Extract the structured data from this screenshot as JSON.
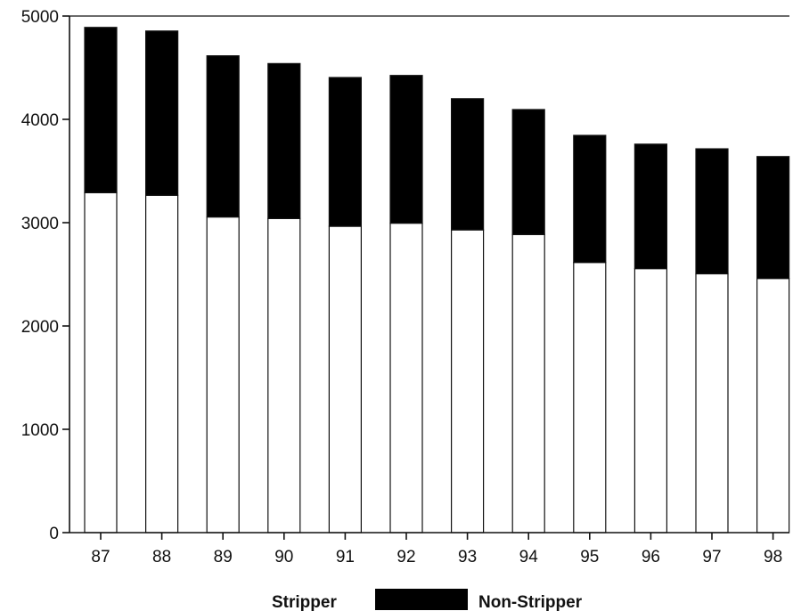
{
  "chart_data": {
    "type": "bar",
    "stacked": true,
    "categories": [
      "87",
      "88",
      "89",
      "90",
      "91",
      "92",
      "93",
      "94",
      "95",
      "96",
      "97",
      "98"
    ],
    "series": [
      {
        "name": "Stripper",
        "values": [
          3290,
          3265,
          3055,
          3040,
          2965,
          2995,
          2930,
          2885,
          2615,
          2555,
          2505,
          2460
        ],
        "color": "#ffffff"
      },
      {
        "name": "Non-Stripper",
        "values": [
          1600,
          1590,
          1560,
          1500,
          1440,
          1430,
          1270,
          1210,
          1230,
          1205,
          1210,
          1180
        ],
        "color": "#000000"
      }
    ],
    "ylim": [
      0,
      5000
    ],
    "yticks": [
      "0",
      "1000",
      "2000",
      "3000",
      "4000",
      "5000"
    ],
    "title": "",
    "xlabel": "",
    "ylabel": "",
    "legend_position": "bottom",
    "grid": false
  }
}
